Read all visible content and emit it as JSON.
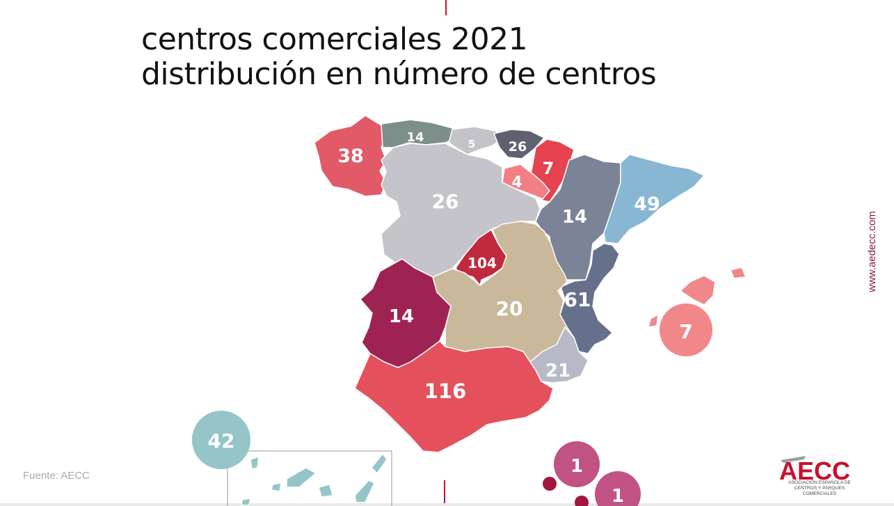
{
  "title": {
    "line1": "centros comerciales 2021",
    "line2": "distribución en número de centros"
  },
  "source": "Fuente: AECC",
  "website": "www.aedecc.com",
  "logo": {
    "name": "AECC",
    "subtitle_line1": "ASOCIACIÓN ESPAÑOLA DE",
    "subtitle_line2": "CENTROS Y PARQUES COMERCIALES"
  },
  "regions": [
    {
      "id": "galicia",
      "value": "38",
      "color": "#e25a67"
    },
    {
      "id": "asturias",
      "value": "14",
      "color": "#7e8e8a"
    },
    {
      "id": "cantabria",
      "value": "5",
      "color": "#c4c3c9"
    },
    {
      "id": "pais-vasco",
      "value": "26",
      "color": "#5e6270"
    },
    {
      "id": "navarra",
      "value": "7",
      "color": "#e4434f"
    },
    {
      "id": "la-rioja",
      "value": "4",
      "color": "#f27f86"
    },
    {
      "id": "castilla-y-leon",
      "value": "26",
      "color": "#c5c4ca"
    },
    {
      "id": "aragon",
      "value": "14",
      "color": "#7b8396"
    },
    {
      "id": "cataluna",
      "value": "49",
      "color": "#88b7d3"
    },
    {
      "id": "madrid",
      "value": "104",
      "color": "#c02a3f"
    },
    {
      "id": "castilla-la-mancha",
      "value": "20",
      "color": "#c9b89a"
    },
    {
      "id": "extremadura",
      "value": "14",
      "color": "#9e2352"
    },
    {
      "id": "comunidad-valenciana",
      "value": "61",
      "color": "#66708b"
    },
    {
      "id": "murcia",
      "value": "21",
      "color": "#b8b9c6"
    },
    {
      "id": "andalucia",
      "value": "116",
      "color": "#e5505d"
    },
    {
      "id": "baleares",
      "value": "7",
      "color": "#f2878a"
    },
    {
      "id": "canarias",
      "value": "42",
      "color": "#95c5c6"
    },
    {
      "id": "ceuta",
      "value": "1",
      "color": "#c05384"
    },
    {
      "id": "melilla",
      "value": "1",
      "color": "#c05384"
    }
  ]
}
